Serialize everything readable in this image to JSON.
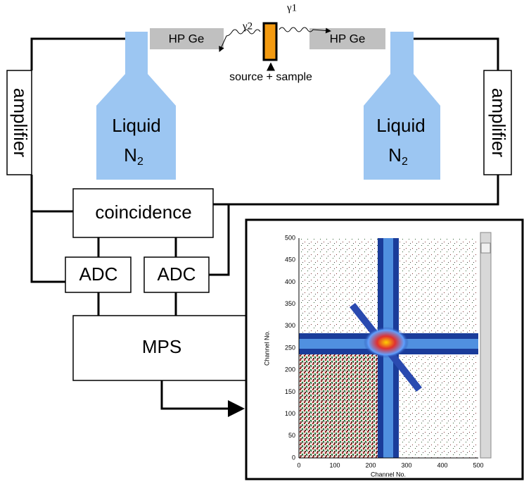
{
  "detectors": {
    "left": "HP Ge",
    "right": "HP Ge"
  },
  "gammas": {
    "g2": "γ2",
    "g1": "γ1"
  },
  "source_label": "source + sample",
  "dewar": {
    "line1": "Liquid",
    "line2": "N",
    "subscript": "2"
  },
  "amplifier": "amplifier",
  "coincidence": "coincidence",
  "adc": "ADC",
  "mps": "MPS",
  "inset": {
    "xlabel": "Channel No.",
    "ylabel": "Channel No.",
    "xticks": [
      "0",
      "100",
      "200",
      "300",
      "400",
      "500"
    ],
    "yticks": [
      "0",
      "50",
      "100",
      "150",
      "200",
      "250",
      "300",
      "350",
      "400",
      "450",
      "500"
    ]
  }
}
